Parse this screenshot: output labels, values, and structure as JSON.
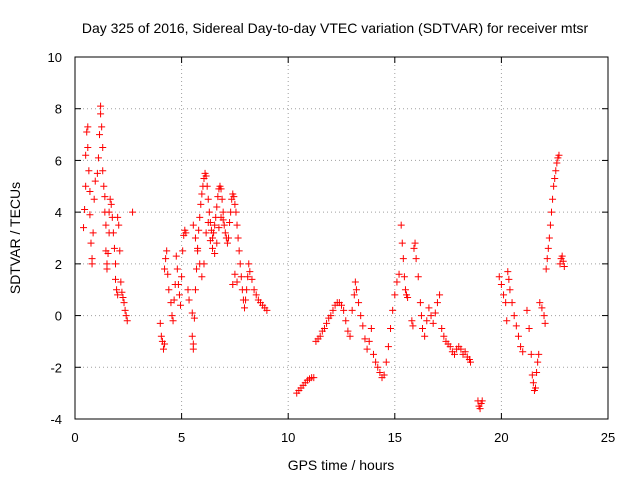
{
  "chart_data": {
    "type": "scatter",
    "title": "Day 325 of 2016, Sidereal Day-to-day VTEC variation (SDTVAR) for receiver mtsr",
    "xlabel": "GPS time / hours",
    "ylabel": "SDTVAR / TECUs",
    "xlim": [
      0,
      25
    ],
    "ylim": [
      -4,
      10
    ],
    "xticks": [
      0,
      5,
      10,
      15,
      20,
      25
    ],
    "yticks": [
      -4,
      -2,
      0,
      2,
      4,
      6,
      8,
      10
    ],
    "grid": true,
    "marker": "+",
    "color": "#ff0000",
    "series": [
      {
        "name": "mtsr",
        "points": [
          [
            0.4,
            3.4
          ],
          [
            0.45,
            4.1
          ],
          [
            0.5,
            5.0
          ],
          [
            0.5,
            6.2
          ],
          [
            0.55,
            7.1
          ],
          [
            0.6,
            7.3
          ],
          [
            0.6,
            6.5
          ],
          [
            0.65,
            5.6
          ],
          [
            0.7,
            4.8
          ],
          [
            0.7,
            3.9
          ],
          [
            0.75,
            2.8
          ],
          [
            0.8,
            2.2
          ],
          [
            0.8,
            2.0
          ],
          [
            0.85,
            3.2
          ],
          [
            0.9,
            4.5
          ],
          [
            0.95,
            5.2
          ],
          [
            1.05,
            5.5
          ],
          [
            1.1,
            6.1
          ],
          [
            1.15,
            7.0
          ],
          [
            1.2,
            7.8
          ],
          [
            1.2,
            8.1
          ],
          [
            1.25,
            7.3
          ],
          [
            1.3,
            6.5
          ],
          [
            1.3,
            5.6
          ],
          [
            1.35,
            5.0
          ],
          [
            1.4,
            4.6
          ],
          [
            1.4,
            4.0
          ],
          [
            1.45,
            3.5
          ],
          [
            1.45,
            2.5
          ],
          [
            1.5,
            2.0
          ],
          [
            1.5,
            1.8
          ],
          [
            1.55,
            2.4
          ],
          [
            1.6,
            3.2
          ],
          [
            1.6,
            4.0
          ],
          [
            1.65,
            4.5
          ],
          [
            1.7,
            4.3
          ],
          [
            1.75,
            3.8
          ],
          [
            1.8,
            3.2
          ],
          [
            1.85,
            2.6
          ],
          [
            1.9,
            2.0
          ],
          [
            1.9,
            1.4
          ],
          [
            1.95,
            1.0
          ],
          [
            2.0,
            0.8
          ],
          [
            2.0,
            3.8
          ],
          [
            2.05,
            3.5
          ],
          [
            2.1,
            2.5
          ],
          [
            2.15,
            1.3
          ],
          [
            2.2,
            0.9
          ],
          [
            2.25,
            0.7
          ],
          [
            2.3,
            0.5
          ],
          [
            2.35,
            0.2
          ],
          [
            2.4,
            0.0
          ],
          [
            2.45,
            -0.2
          ],
          [
            2.7,
            4.0
          ],
          [
            4.0,
            -0.3
          ],
          [
            4.05,
            -0.8
          ],
          [
            4.1,
            -1.0
          ],
          [
            4.15,
            -1.3
          ],
          [
            4.2,
            -1.1
          ],
          [
            4.2,
            1.8
          ],
          [
            4.25,
            2.2
          ],
          [
            4.3,
            2.5
          ],
          [
            4.35,
            1.6
          ],
          [
            4.4,
            1.0
          ],
          [
            4.5,
            0.5
          ],
          [
            4.55,
            0.0
          ],
          [
            4.6,
            -0.2
          ],
          [
            4.65,
            0.6
          ],
          [
            4.7,
            1.2
          ],
          [
            4.75,
            2.3
          ],
          [
            4.8,
            1.8
          ],
          [
            4.85,
            1.2
          ],
          [
            4.9,
            0.8
          ],
          [
            4.95,
            0.4
          ],
          [
            5.0,
            1.5
          ],
          [
            5.05,
            2.5
          ],
          [
            5.1,
            3.1
          ],
          [
            5.15,
            3.3
          ],
          [
            5.2,
            3.2
          ],
          [
            5.3,
            1.0
          ],
          [
            5.35,
            0.6
          ],
          [
            5.5,
            0.1
          ],
          [
            5.5,
            -0.8
          ],
          [
            5.55,
            -1.1
          ],
          [
            5.55,
            -1.3
          ],
          [
            5.6,
            -0.1
          ],
          [
            5.65,
            1.0
          ],
          [
            5.7,
            1.8
          ],
          [
            5.75,
            2.6
          ],
          [
            5.8,
            3.3
          ],
          [
            5.85,
            3.8
          ],
          [
            5.9,
            4.3
          ],
          [
            5.95,
            4.7
          ],
          [
            6.0,
            5.0
          ],
          [
            6.05,
            5.3
          ],
          [
            6.1,
            5.5
          ],
          [
            6.15,
            5.4
          ],
          [
            6.2,
            5.0
          ],
          [
            6.25,
            4.5
          ],
          [
            6.3,
            4.0
          ],
          [
            6.35,
            3.6
          ],
          [
            6.4,
            3.3
          ],
          [
            6.45,
            3.0
          ],
          [
            6.5,
            3.2
          ],
          [
            6.55,
            3.5
          ],
          [
            6.6,
            3.8
          ],
          [
            6.65,
            4.2
          ],
          [
            6.7,
            4.6
          ],
          [
            6.75,
            4.9
          ],
          [
            6.8,
            5.0
          ],
          [
            6.85,
            4.9
          ],
          [
            6.9,
            4.5
          ],
          [
            6.95,
            4.0
          ],
          [
            7.0,
            3.5
          ],
          [
            7.05,
            3.2
          ],
          [
            7.1,
            3.0
          ],
          [
            7.15,
            2.8
          ],
          [
            5.55,
            3.5
          ],
          [
            5.65,
            3.0
          ],
          [
            5.75,
            2.5
          ],
          [
            5.85,
            2.0
          ],
          [
            5.95,
            1.5
          ],
          [
            6.05,
            2.0
          ],
          [
            6.15,
            3.2
          ],
          [
            6.25,
            3.6
          ],
          [
            6.35,
            2.9
          ],
          [
            6.45,
            2.6
          ],
          [
            6.55,
            2.4
          ],
          [
            6.65,
            2.8
          ],
          [
            6.75,
            3.4
          ],
          [
            6.85,
            3.8
          ],
          [
            6.95,
            3.7
          ],
          [
            7.2,
            3.0
          ],
          [
            7.25,
            3.6
          ],
          [
            7.3,
            4.0
          ],
          [
            7.35,
            4.5
          ],
          [
            7.4,
            4.7
          ],
          [
            7.45,
            4.6
          ],
          [
            7.5,
            4.3
          ],
          [
            7.55,
            4.0
          ],
          [
            7.6,
            3.5
          ],
          [
            7.65,
            3.0
          ],
          [
            7.7,
            2.5
          ],
          [
            7.75,
            2.0
          ],
          [
            7.8,
            1.5
          ],
          [
            7.85,
            1.0
          ],
          [
            7.9,
            0.6
          ],
          [
            7.95,
            0.3
          ],
          [
            8.0,
            0.6
          ],
          [
            8.05,
            1.0
          ],
          [
            8.1,
            1.5
          ],
          [
            8.15,
            2.0
          ],
          [
            8.2,
            1.7
          ],
          [
            8.3,
            1.4
          ],
          [
            8.4,
            1.0
          ],
          [
            8.5,
            0.8
          ],
          [
            8.6,
            0.6
          ],
          [
            8.7,
            0.5
          ],
          [
            8.8,
            0.4
          ],
          [
            8.9,
            0.3
          ],
          [
            9.0,
            0.2
          ],
          [
            7.4,
            1.2
          ],
          [
            7.5,
            1.6
          ],
          [
            7.6,
            1.3
          ],
          [
            10.4,
            -3.0
          ],
          [
            10.5,
            -2.9
          ],
          [
            10.6,
            -2.8
          ],
          [
            10.7,
            -2.7
          ],
          [
            10.8,
            -2.6
          ],
          [
            10.9,
            -2.5
          ],
          [
            11.0,
            -2.45
          ],
          [
            11.1,
            -2.4
          ],
          [
            11.2,
            -2.4
          ],
          [
            11.3,
            -1.0
          ],
          [
            11.4,
            -0.9
          ],
          [
            11.5,
            -0.8
          ],
          [
            11.6,
            -0.6
          ],
          [
            11.7,
            -0.5
          ],
          [
            11.8,
            -0.3
          ],
          [
            11.9,
            -0.1
          ],
          [
            12.0,
            0.0
          ],
          [
            12.1,
            0.2
          ],
          [
            12.2,
            0.4
          ],
          [
            12.3,
            0.5
          ],
          [
            12.4,
            0.5
          ],
          [
            12.5,
            0.4
          ],
          [
            12.6,
            0.2
          ],
          [
            12.7,
            -0.2
          ],
          [
            12.8,
            -0.6
          ],
          [
            12.9,
            -0.8
          ],
          [
            13.0,
            0.2
          ],
          [
            13.1,
            0.8
          ],
          [
            13.15,
            1.3
          ],
          [
            13.2,
            1.0
          ],
          [
            13.3,
            0.5
          ],
          [
            13.4,
            0.0
          ],
          [
            13.5,
            -0.4
          ],
          [
            13.6,
            -0.9
          ],
          [
            13.7,
            -1.3
          ],
          [
            13.8,
            -1.0
          ],
          [
            13.9,
            -0.5
          ],
          [
            14.0,
            -1.5
          ],
          [
            14.1,
            -1.8
          ],
          [
            14.2,
            -2.0
          ],
          [
            14.3,
            -2.2
          ],
          [
            14.4,
            -2.4
          ],
          [
            14.5,
            -2.3
          ],
          [
            14.6,
            -1.8
          ],
          [
            14.7,
            -1.2
          ],
          [
            14.8,
            -0.5
          ],
          [
            14.9,
            0.2
          ],
          [
            15.0,
            0.8
          ],
          [
            15.1,
            1.3
          ],
          [
            15.2,
            1.6
          ],
          [
            15.3,
            3.5
          ],
          [
            15.35,
            2.8
          ],
          [
            15.4,
            2.2
          ],
          [
            15.45,
            1.5
          ],
          [
            15.5,
            1.0
          ],
          [
            15.55,
            0.8
          ],
          [
            15.6,
            0.7
          ],
          [
            15.8,
            -0.2
          ],
          [
            15.85,
            -0.4
          ],
          [
            15.9,
            2.6
          ],
          [
            15.95,
            2.8
          ],
          [
            16.0,
            2.2
          ],
          [
            16.1,
            1.5
          ],
          [
            16.2,
            0.5
          ],
          [
            16.25,
            0.0
          ],
          [
            16.3,
            -0.5
          ],
          [
            16.4,
            -0.8
          ],
          [
            16.5,
            -0.2
          ],
          [
            16.6,
            0.3
          ],
          [
            16.7,
            0.0
          ],
          [
            16.8,
            -0.3
          ],
          [
            16.9,
            0.1
          ],
          [
            17.0,
            0.5
          ],
          [
            17.1,
            0.8
          ],
          [
            17.2,
            -0.5
          ],
          [
            17.3,
            -0.8
          ],
          [
            17.4,
            -1.0
          ],
          [
            17.5,
            -1.1
          ],
          [
            17.6,
            -1.2
          ],
          [
            17.7,
            -1.4
          ],
          [
            17.8,
            -1.5
          ],
          [
            17.9,
            -1.3
          ],
          [
            18.0,
            -1.2
          ],
          [
            18.1,
            -1.3
          ],
          [
            18.2,
            -1.5
          ],
          [
            18.3,
            -1.4
          ],
          [
            18.4,
            -1.6
          ],
          [
            18.5,
            -1.7
          ],
          [
            18.55,
            -1.8
          ],
          [
            18.9,
            -3.3
          ],
          [
            18.95,
            -3.5
          ],
          [
            19.0,
            -3.6
          ],
          [
            19.05,
            -3.4
          ],
          [
            19.1,
            -3.3
          ],
          [
            19.9,
            1.5
          ],
          [
            20.0,
            1.2
          ],
          [
            20.1,
            0.8
          ],
          [
            20.2,
            0.5
          ],
          [
            20.25,
            -0.2
          ],
          [
            20.3,
            1.7
          ],
          [
            20.35,
            1.4
          ],
          [
            20.4,
            1.0
          ],
          [
            20.5,
            0.5
          ],
          [
            20.6,
            0.0
          ],
          [
            20.7,
            -0.4
          ],
          [
            20.8,
            -0.8
          ],
          [
            20.9,
            -1.2
          ],
          [
            21.0,
            -1.4
          ],
          [
            21.2,
            0.2
          ],
          [
            21.3,
            -0.5
          ],
          [
            21.4,
            -1.5
          ],
          [
            21.45,
            -2.3
          ],
          [
            21.5,
            -2.6
          ],
          [
            21.55,
            -2.9
          ],
          [
            21.6,
            -2.8
          ],
          [
            21.65,
            -2.2
          ],
          [
            21.7,
            -1.8
          ],
          [
            21.75,
            -1.5
          ],
          [
            21.8,
            0.5
          ],
          [
            21.9,
            0.3
          ],
          [
            22.0,
            0.0
          ],
          [
            22.05,
            -0.3
          ],
          [
            22.1,
            1.8
          ],
          [
            22.15,
            2.2
          ],
          [
            22.2,
            2.6
          ],
          [
            22.25,
            3.0
          ],
          [
            22.3,
            3.5
          ],
          [
            22.35,
            4.0
          ],
          [
            22.4,
            4.5
          ],
          [
            22.45,
            5.0
          ],
          [
            22.5,
            5.3
          ],
          [
            22.55,
            5.6
          ],
          [
            22.6,
            5.9
          ],
          [
            22.65,
            6.1
          ],
          [
            22.7,
            6.2
          ],
          [
            22.75,
            2.0
          ],
          [
            22.8,
            2.2
          ],
          [
            22.85,
            2.3
          ],
          [
            22.9,
            2.1
          ],
          [
            22.95,
            1.9
          ]
        ]
      }
    ]
  }
}
